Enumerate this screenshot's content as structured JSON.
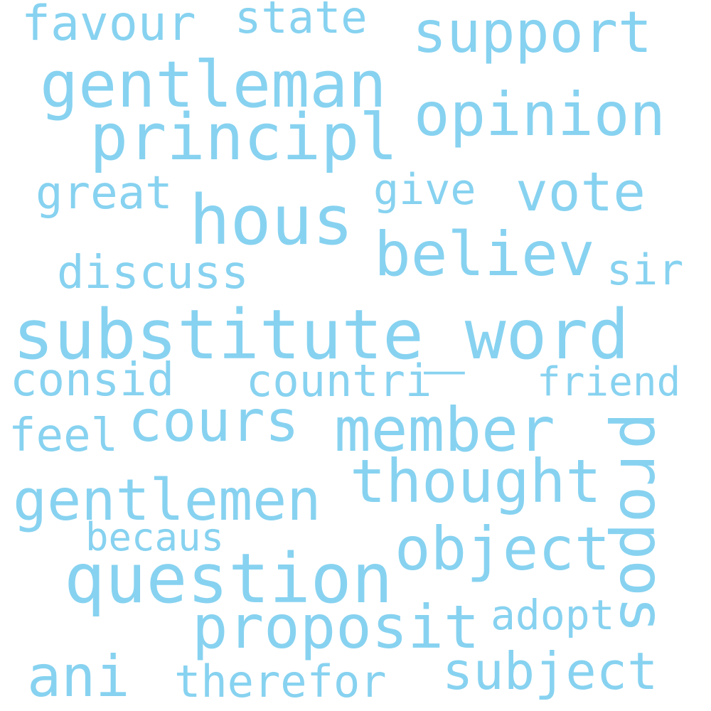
{
  "word_color": "#87d2f0",
  "background": "#ffffff",
  "words": {
    "favour": "favour",
    "state": "state",
    "support": "support",
    "gentleman": "gentleman",
    "opinion": "opinion",
    "principl": "principl",
    "great": "great",
    "hous": "hous",
    "give": "give",
    "vote": "vote",
    "believ": "believ",
    "discuss": "discuss",
    "sir": "sir",
    "substitute_word": "substitute_word",
    "consid": "consid",
    "countri": "countri",
    "friend": "friend",
    "feel": "feel",
    "cours": "cours",
    "member": "member",
    "propos": "propos",
    "gentlemen": "gentlemen",
    "thought": "thought",
    "becaus": "becaus",
    "object": "object",
    "question": "question",
    "adopt": "adopt",
    "proposit": "proposit",
    "ani": "ani",
    "therefor": "therefor",
    "subject": "subject"
  }
}
